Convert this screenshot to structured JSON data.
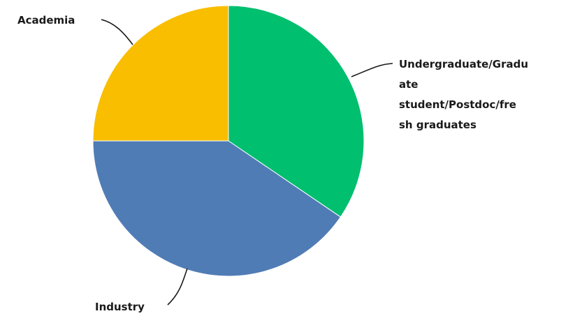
{
  "chart_data": {
    "type": "pie",
    "start_angle_deg": 0,
    "direction": "clockwise",
    "slices": [
      {
        "label": "Undergraduate/Graduate student/Postdoc/fresh graduates",
        "label_lines": [
          "Undergraduate/Gradu",
          "ate",
          "student/Postdoc/fre",
          "sh graduates"
        ],
        "value": 34.5,
        "color": "#00BF6F"
      },
      {
        "label": "Industry",
        "label_lines": [
          "Industry"
        ],
        "value": 40.5,
        "color": "#507CB6"
      },
      {
        "label": "Academia",
        "label_lines": [
          "Academia"
        ],
        "value": 25.0,
        "color": "#F9BE00"
      }
    ]
  }
}
